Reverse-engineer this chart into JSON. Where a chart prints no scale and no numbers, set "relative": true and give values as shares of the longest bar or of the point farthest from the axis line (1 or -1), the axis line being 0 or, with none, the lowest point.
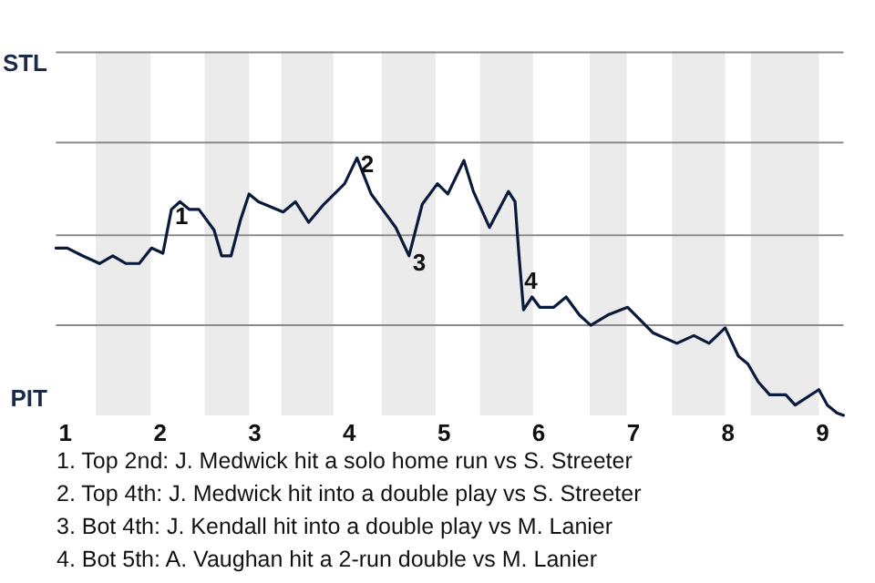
{
  "chart_data": {
    "type": "line",
    "relative": true,
    "x": [
      0.9,
      1.02,
      1.18,
      1.36,
      1.5,
      1.64,
      1.78,
      1.91,
      2.03,
      2.12,
      2.21,
      2.31,
      2.41,
      2.47,
      2.57,
      2.65,
      2.75,
      2.85,
      2.94,
      3.04,
      3.3,
      3.43,
      3.57,
      3.73,
      3.95,
      4.08,
      4.23,
      4.35,
      4.49,
      4.63,
      4.77,
      4.93,
      5.04,
      5.21,
      5.31,
      5.48,
      5.68,
      5.75,
      5.79,
      5.84,
      5.93,
      6.01,
      6.16,
      6.29,
      6.43,
      6.55,
      6.73,
      6.94,
      7.21,
      7.46,
      7.64,
      7.8,
      7.97,
      8.11,
      8.21,
      8.32,
      8.44,
      8.61,
      8.71,
      8.96,
      9.05,
      9.15,
      9.22
    ],
    "series": [
      {
        "color": "#0a1a3c",
        "values": [
          0.65,
          0.65,
          0.62,
          0.59,
          0.62,
          0.59,
          0.59,
          0.65,
          0.63,
          0.8,
          0.83,
          0.8,
          0.8,
          0.77,
          0.72,
          0.62,
          0.62,
          0.76,
          0.86,
          0.83,
          0.79,
          0.83,
          0.75,
          0.82,
          0.9,
          1,
          0.86,
          0.8,
          0.73,
          0.62,
          0.82,
          0.9,
          0.86,
          0.99,
          0.87,
          0.73,
          0.87,
          0.83,
          0.63,
          0.41,
          0.46,
          0.42,
          0.42,
          0.46,
          0.39,
          0.35,
          0.39,
          0.42,
          0.32,
          0.28,
          0.31,
          0.28,
          0.34,
          0.23,
          0.2,
          0.13,
          0.08,
          0.08,
          0.04,
          0.1,
          0.04,
          0.01,
          0
        ]
      }
    ],
    "xlim": [
      0.9,
      9.22
    ],
    "xticks": [
      1,
      2,
      3,
      4,
      5,
      6,
      7,
      8,
      9
    ],
    "marker": "none",
    "ref_lines": [
      {
        "axis": "y",
        "value": 0.35,
        "color": "#8a8a8a"
      },
      {
        "axis": "y",
        "value": 0.7,
        "color": "#8a8a8a"
      },
      {
        "axis": "y",
        "value": 1.06,
        "color": "#8a8a8a"
      },
      {
        "axis": "y",
        "value": 1.41,
        "color": "#8a8a8a"
      }
    ],
    "bands": [
      {
        "axis": "x",
        "from": 1.32,
        "to": 1.9,
        "color": "#ebebeb"
      },
      {
        "axis": "x",
        "from": 2.47,
        "to": 2.94,
        "color": "#ebebeb"
      },
      {
        "axis": "x",
        "from": 3.28,
        "to": 3.83,
        "color": "#ebebeb"
      },
      {
        "axis": "x",
        "from": 4.34,
        "to": 4.91,
        "color": "#ebebeb"
      },
      {
        "axis": "x",
        "from": 5.38,
        "to": 5.94,
        "color": "#ebebeb"
      },
      {
        "axis": "x",
        "from": 6.54,
        "to": 6.93,
        "color": "#ebebeb"
      },
      {
        "axis": "x",
        "from": 7.41,
        "to": 7.97,
        "color": "#ebebeb"
      },
      {
        "axis": "x",
        "from": 8.24,
        "to": 8.96,
        "color": "#ebebeb"
      }
    ],
    "annotations": [
      "STL",
      "PIT",
      {
        "text": "1",
        "x": 2.12,
        "y": 0.8
      },
      {
        "text": "2",
        "x": 4.08,
        "y": 1
      },
      {
        "text": "3",
        "x": 4.63,
        "y": 0.62
      },
      {
        "text": "4",
        "x": 5.81,
        "y": 0.55
      },
      "1. Top 2nd: J. Medwick hit a solo home run vs S. Streeter",
      "2. Top 4th: J. Medwick hit into a double play vs S. Streeter",
      "3. Bot 4th: J. Kendall hit into a double play vs M. Lanier",
      "4. Bot 5th: A. Vaughan hit a 2-run double vs M. Lanier"
    ]
  }
}
